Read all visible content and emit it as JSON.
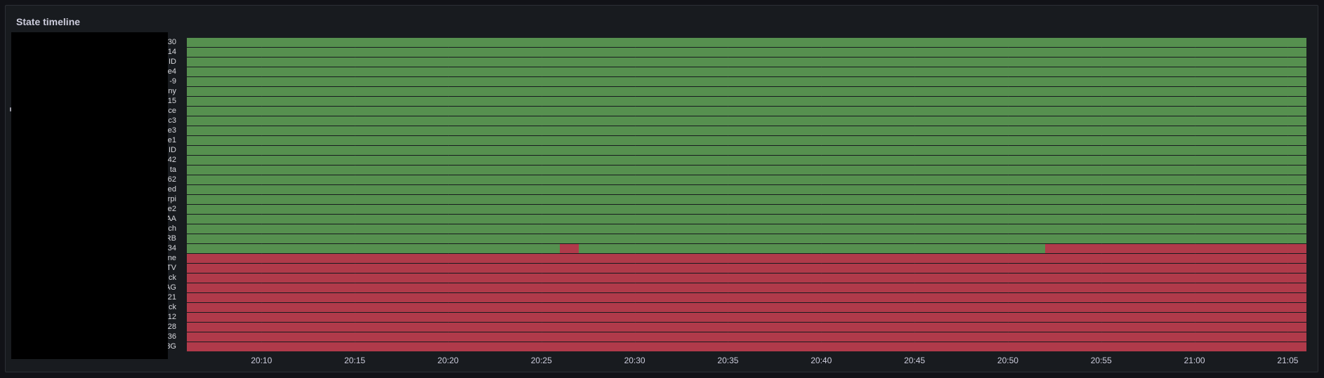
{
  "panel": {
    "title": "State timeline"
  },
  "colors": {
    "ok": "#56904f",
    "fail": "#b03a4a",
    "panel_bg": "#181b1f",
    "page_bg": "#111217",
    "row_separator": "#181b1f",
    "redaction": "#000000"
  },
  "chart_data": {
    "type": "state-timeline",
    "x_range": [
      "20:06",
      "21:06"
    ],
    "x_ticks": [
      "20:10",
      "20:15",
      "20:20",
      "20:25",
      "20:30",
      "20:35",
      "20:40",
      "20:45",
      "20:50",
      "20:55",
      "21:00",
      "21:05"
    ],
    "states": [
      "ok",
      "fail"
    ],
    "rows": [
      {
        "label": "30",
        "segments": [
          {
            "start": "20:06",
            "end": "21:06",
            "state": "ok"
          }
        ]
      },
      {
        "label": "14",
        "segments": [
          {
            "start": "20:06",
            "end": "21:06",
            "state": "ok"
          }
        ]
      },
      {
        "label": "ID",
        "segments": [
          {
            "start": "20:06",
            "end": "21:06",
            "state": "ok"
          }
        ]
      },
      {
        "label": "e4",
        "segments": [
          {
            "start": "20:06",
            "end": "21:06",
            "state": "ok"
          }
        ]
      },
      {
        "label": "-9",
        "segments": [
          {
            "start": "20:06",
            "end": "21:06",
            "state": "ok"
          }
        ]
      },
      {
        "label": "ny",
        "segments": [
          {
            "start": "20:06",
            "end": "21:06",
            "state": "ok"
          }
        ]
      },
      {
        "label": "15",
        "segments": [
          {
            "start": "20:06",
            "end": "21:06",
            "state": "ok"
          }
        ]
      },
      {
        "label": "ce",
        "segments": [
          {
            "start": "20:06",
            "end": "21:06",
            "state": "ok"
          }
        ]
      },
      {
        "label": "c3",
        "segments": [
          {
            "start": "20:06",
            "end": "21:06",
            "state": "ok"
          }
        ]
      },
      {
        "label": "e3",
        "segments": [
          {
            "start": "20:06",
            "end": "21:06",
            "state": "ok"
          }
        ]
      },
      {
        "label": "e1",
        "segments": [
          {
            "start": "20:06",
            "end": "21:06",
            "state": "ok"
          }
        ]
      },
      {
        "label": "ID",
        "segments": [
          {
            "start": "20:06",
            "end": "21:06",
            "state": "ok"
          }
        ]
      },
      {
        "label": "42",
        "segments": [
          {
            "start": "20:06",
            "end": "21:06",
            "state": "ok"
          }
        ]
      },
      {
        "label": "ta",
        "segments": [
          {
            "start": "20:06",
            "end": "21:06",
            "state": "ok"
          }
        ]
      },
      {
        "label": "62",
        "segments": [
          {
            "start": "20:06",
            "end": "21:06",
            "state": "ok"
          }
        ]
      },
      {
        "label": "ed",
        "segments": [
          {
            "start": "20:06",
            "end": "21:06",
            "state": "ok"
          }
        ]
      },
      {
        "label": "rpi",
        "segments": [
          {
            "start": "20:06",
            "end": "21:06",
            "state": "ok"
          }
        ]
      },
      {
        "label": "e2",
        "segments": [
          {
            "start": "20:06",
            "end": "21:06",
            "state": "ok"
          }
        ]
      },
      {
        "label": "AA",
        "segments": [
          {
            "start": "20:06",
            "end": "21:06",
            "state": "ok"
          }
        ]
      },
      {
        "label": "ch",
        "segments": [
          {
            "start": "20:06",
            "end": "21:06",
            "state": "ok"
          }
        ]
      },
      {
        "label": "RB",
        "segments": [
          {
            "start": "20:06",
            "end": "21:06",
            "state": "ok"
          }
        ]
      },
      {
        "label": "34",
        "segments": [
          {
            "start": "20:06",
            "end": "20:26",
            "state": "ok"
          },
          {
            "start": "20:26",
            "end": "20:27",
            "state": "fail"
          },
          {
            "start": "20:27",
            "end": "20:52",
            "state": "ok"
          },
          {
            "start": "20:52",
            "end": "21:06",
            "state": "fail"
          }
        ]
      },
      {
        "label": "ne",
        "segments": [
          {
            "start": "20:06",
            "end": "21:06",
            "state": "fail"
          }
        ]
      },
      {
        "label": "TV",
        "segments": [
          {
            "start": "20:06",
            "end": "21:06",
            "state": "fail"
          }
        ]
      },
      {
        "label": "ck",
        "segments": [
          {
            "start": "20:06",
            "end": "21:06",
            "state": "fail"
          }
        ]
      },
      {
        "label": "AG",
        "segments": [
          {
            "start": "20:06",
            "end": "21:06",
            "state": "fail"
          }
        ]
      },
      {
        "label": "21",
        "segments": [
          {
            "start": "20:06",
            "end": "21:06",
            "state": "fail"
          }
        ]
      },
      {
        "label": "ck",
        "segments": [
          {
            "start": "20:06",
            "end": "21:06",
            "state": "fail"
          }
        ]
      },
      {
        "label": "12",
        "segments": [
          {
            "start": "20:06",
            "end": "21:06",
            "state": "fail"
          }
        ]
      },
      {
        "label": "28",
        "segments": [
          {
            "start": "20:06",
            "end": "21:06",
            "state": "fail"
          }
        ]
      },
      {
        "label": "36",
        "segments": [
          {
            "start": "20:06",
            "end": "21:06",
            "state": "fail"
          }
        ]
      },
      {
        "label": "3G",
        "segments": [
          {
            "start": "20:06",
            "end": "21:06",
            "state": "fail"
          }
        ]
      }
    ]
  }
}
